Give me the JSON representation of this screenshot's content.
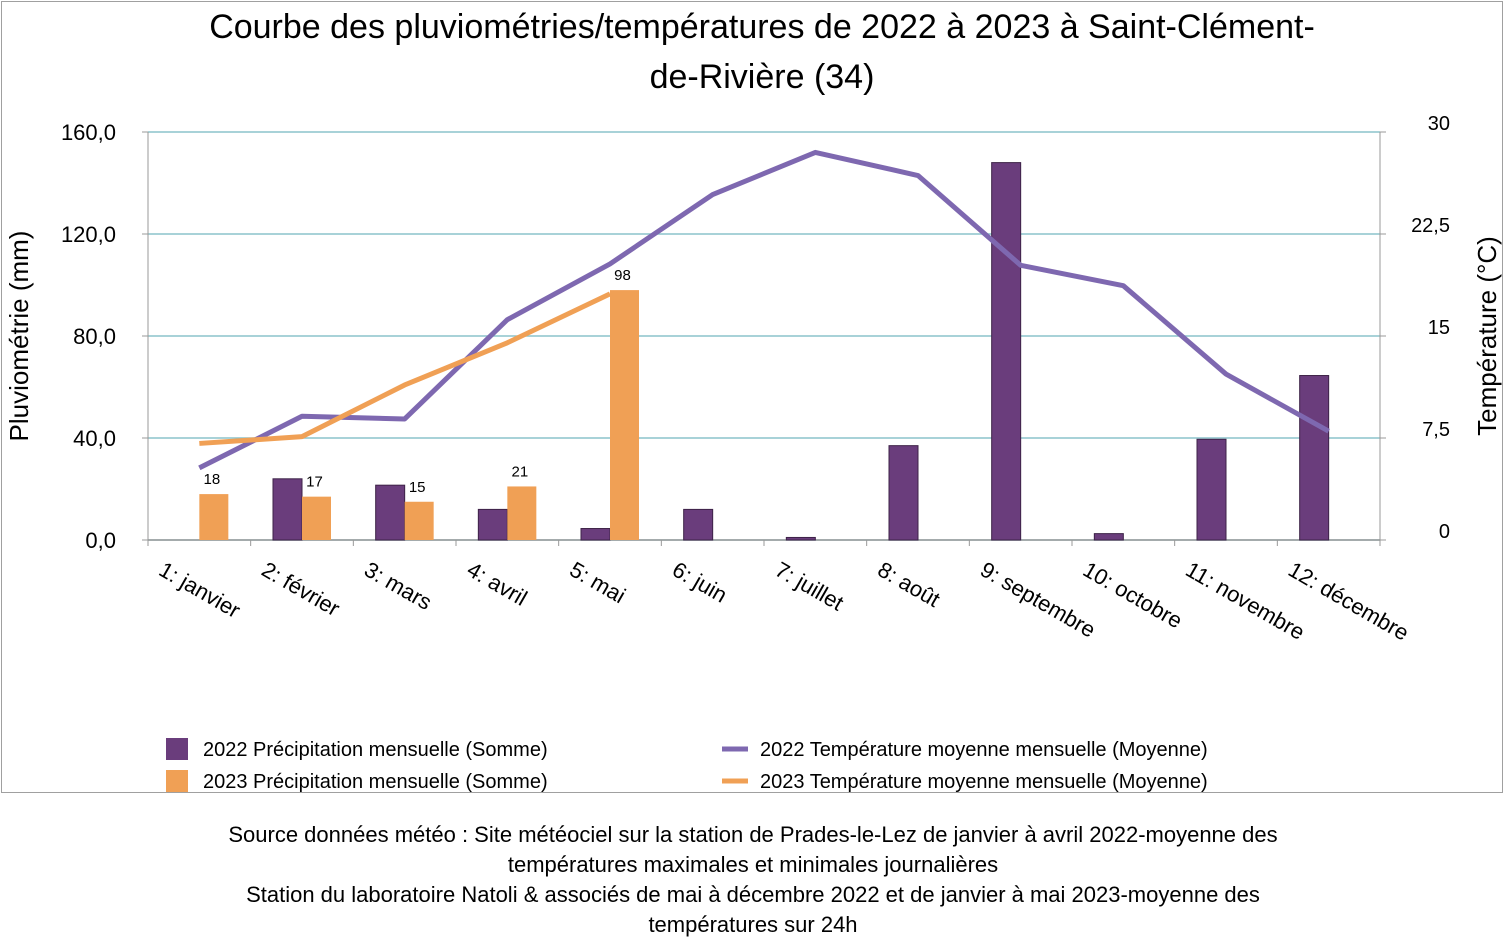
{
  "chart_data": {
    "type": "bar+line",
    "title_lines": [
      "Courbe des pluviométries/températures de 2022 à 2023 à Saint-Clément-",
      "de-Rivière (34)"
    ],
    "categories": [
      "1: janvier",
      "2: février",
      "3: mars",
      "4: avril",
      "5: mai",
      "6: juin",
      "7: juillet",
      "8: août",
      "9: septembre",
      "10: octobre",
      "11: novembre",
      "12: décembre"
    ],
    "ylabel_left": "Pluviométrie (mm)",
    "ylabel_right": "Température (°C)",
    "ylim_left": [
      0,
      160
    ],
    "ylim_right": [
      0,
      30
    ],
    "yticks_left": [
      "0,0",
      "40,0",
      "80,0",
      "120,0",
      "160,0"
    ],
    "yticks_right": [
      "0",
      "7,5",
      "15",
      "22,5",
      "30"
    ],
    "grid": true,
    "legend_position": "bottom",
    "bar_series": [
      {
        "name": "2022 Précipitation mensuelle (Somme)",
        "color": "#6a3d7c",
        "values": [
          0,
          24,
          21.5,
          12,
          4.5,
          12,
          1,
          37,
          148,
          2.5,
          39.5,
          64.5
        ],
        "labels": [
          "",
          "",
          "",
          "",
          "",
          "",
          "",
          "",
          "",
          "",
          "",
          ""
        ]
      },
      {
        "name": "2023 Précipitation mensuelle (Somme)",
        "color": "#f0a055",
        "values": [
          18,
          17,
          15,
          21,
          98,
          null,
          null,
          null,
          null,
          null,
          null,
          null
        ],
        "labels": [
          "18",
          "17",
          "15",
          "21",
          "98",
          "",
          "",
          "",
          "",
          "",
          "",
          ""
        ]
      }
    ],
    "line_series": [
      {
        "name": "2022 Température moyenne mensuelle (Moyenne)",
        "color": "#7e68b0",
        "values": [
          5.3,
          9.1,
          8.9,
          16.2,
          20.3,
          25.4,
          28.5,
          26.8,
          20.2,
          18.7,
          12.2,
          8.0
        ]
      },
      {
        "name": "2023 Température moyenne mensuelle (Moyenne)",
        "color": "#f0a055",
        "values": [
          7.1,
          7.6,
          11.4,
          14.5,
          18.1,
          null,
          null,
          null,
          null,
          null,
          null,
          null
        ]
      }
    ]
  },
  "source_note": [
    "Source données météo : Site météociel sur la station de Prades-le-Lez de janvier à avril 2022-moyenne des",
    "températures maximales et minimales journalières",
    "Station du laboratoire Natoli & associés  de mai à décembre 2022 et de janvier à mai 2023-moyenne des",
    "températures sur 24h"
  ]
}
